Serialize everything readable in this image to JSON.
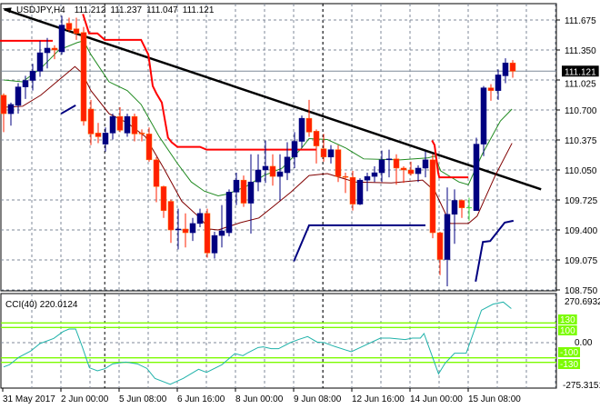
{
  "chart_data": [
    {
      "type": "candlestick",
      "title": "USDJPY,H4",
      "ohlc_header": [
        "111.212",
        "111.237",
        "111.047",
        "111.121"
      ],
      "current_price": "111.121",
      "ylim": [
        108.75,
        111.84
      ],
      "y_ticks": [
        "111.675",
        "111.350",
        "111.025",
        "110.700",
        "110.375",
        "110.050",
        "109.725",
        "109.400",
        "109.075",
        "108.750"
      ],
      "y_tick_values": [
        111.675,
        111.35,
        111.025,
        110.7,
        110.375,
        110.05,
        109.725,
        109.4,
        109.075,
        108.75
      ],
      "x_labels": [
        "31 May 2017",
        "2 Jun 00:00",
        "5 Jun 08:00",
        "6 Jun 16:00",
        "8 Jun 00:00",
        "9 Jun 08:00",
        "12 Jun 16:00",
        "14 Jun 00:00",
        "15 Jun 08:00"
      ],
      "x_label_candle_index": [
        0,
        8,
        16,
        24,
        32,
        40,
        48,
        56,
        64
      ],
      "period_separators_candle_index": [
        13.9,
        43.9
      ],
      "colors": {
        "up": "#000080",
        "down": "#ff2000",
        "neutral": "#33dd33",
        "ma_fast": "#228b22",
        "ma_slow": "#800000",
        "stop_line": "#ff0000",
        "blue_line": "#000080",
        "trendline": "#000000"
      },
      "candles": [
        [
          110.86,
          110.88,
          110.46,
          110.66
        ],
        [
          110.66,
          110.78,
          110.53,
          110.76
        ],
        [
          110.75,
          110.99,
          110.66,
          110.95
        ],
        [
          110.95,
          111.07,
          110.82,
          111.02
        ],
        [
          111.02,
          111.2,
          110.91,
          111.12
        ],
        [
          111.12,
          111.45,
          111.06,
          111.32
        ],
        [
          111.32,
          111.48,
          111.15,
          111.37
        ],
        [
          111.37,
          111.4,
          111.25,
          111.35
        ],
        [
          111.33,
          111.72,
          111.3,
          111.62
        ],
        [
          111.64,
          111.7,
          111.55,
          111.57
        ],
        [
          111.58,
          111.7,
          111.46,
          111.53
        ],
        [
          111.54,
          111.6,
          110.53,
          110.58
        ],
        [
          110.71,
          110.81,
          110.32,
          110.44
        ],
        [
          110.45,
          110.56,
          110.34,
          110.41
        ],
        [
          110.33,
          110.51,
          110.25,
          110.45
        ],
        [
          110.45,
          110.66,
          110.38,
          110.63
        ],
        [
          110.63,
          110.73,
          110.46,
          110.48
        ],
        [
          110.45,
          110.66,
          110.41,
          110.63
        ],
        [
          110.63,
          110.66,
          110.36,
          110.44
        ],
        [
          110.45,
          110.49,
          110.36,
          110.44
        ],
        [
          110.44,
          110.51,
          110.14,
          110.16
        ],
        [
          110.16,
          110.19,
          109.7,
          109.87
        ],
        [
          109.87,
          109.88,
          109.53,
          109.61
        ],
        [
          109.71,
          109.73,
          109.26,
          109.4
        ],
        [
          109.4,
          109.63,
          109.19,
          109.41
        ],
        [
          109.41,
          109.58,
          109.21,
          109.37
        ],
        [
          109.37,
          109.53,
          109.28,
          109.47
        ],
        [
          109.47,
          109.63,
          109.43,
          109.58
        ],
        [
          109.58,
          109.63,
          109.1,
          109.15
        ],
        [
          109.15,
          109.38,
          109.09,
          109.34
        ],
        [
          109.34,
          109.67,
          109.21,
          109.39
        ],
        [
          109.37,
          109.84,
          109.33,
          109.81
        ],
        [
          109.81,
          110.02,
          109.67,
          109.94
        ],
        [
          109.94,
          109.99,
          109.65,
          109.69
        ],
        [
          109.69,
          110.22,
          109.36,
          109.92
        ],
        [
          109.92,
          110.22,
          109.82,
          110.05
        ],
        [
          110.05,
          110.37,
          109.91,
          110.09
        ],
        [
          110.09,
          110.22,
          109.88,
          109.98
        ],
        [
          109.98,
          110.22,
          109.72,
          110.03
        ],
        [
          110.02,
          110.35,
          109.94,
          110.19
        ],
        [
          110.19,
          110.46,
          110.07,
          110.36
        ],
        [
          110.36,
          110.64,
          110.29,
          110.61
        ],
        [
          110.61,
          110.81,
          110.41,
          110.46
        ],
        [
          110.47,
          110.49,
          110.12,
          110.31
        ],
        [
          110.28,
          110.44,
          110.14,
          110.19
        ],
        [
          110.19,
          110.32,
          110.12,
          110.27
        ],
        [
          110.27,
          110.32,
          109.92,
          109.98
        ],
        [
          109.98,
          110.02,
          109.8,
          109.97
        ],
        [
          109.97,
          110.04,
          109.61,
          109.68
        ],
        [
          109.68,
          109.96,
          109.67,
          109.94
        ],
        [
          109.94,
          110.02,
          109.82,
          109.98
        ],
        [
          109.98,
          110.09,
          109.92,
          110.02
        ],
        [
          110.02,
          110.26,
          109.92,
          110.16
        ],
        [
          110.16,
          110.27,
          109.97,
          110.17
        ],
        [
          110.17,
          110.22,
          109.89,
          110.07
        ],
        [
          110.07,
          110.09,
          109.91,
          110.05
        ],
        [
          110.05,
          110.14,
          109.99,
          110.01
        ],
        [
          110.01,
          110.1,
          109.92,
          110.07
        ],
        [
          110.07,
          110.25,
          109.97,
          110.16
        ],
        [
          110.16,
          110.22,
          109.31,
          109.37
        ],
        [
          109.37,
          109.38,
          108.91,
          109.08
        ],
        [
          109.08,
          109.86,
          108.79,
          109.57
        ],
        [
          109.57,
          109.84,
          109.25,
          109.72
        ],
        [
          109.72,
          109.73,
          109.53,
          109.64
        ],
        [
          109.64,
          109.75,
          109.5,
          109.64
        ],
        [
          109.61,
          110.4,
          109.61,
          110.33
        ],
        [
          110.33,
          110.96,
          110.2,
          110.94
        ],
        [
          110.94,
          110.98,
          110.8,
          110.91
        ],
        [
          110.91,
          111.14,
          110.81,
          111.08
        ],
        [
          111.07,
          111.26,
          110.99,
          111.21
        ],
        [
          111.21,
          111.24,
          111.05,
          111.12
        ]
      ],
      "ma_fast": [
        [
          0,
          111.025
        ],
        [
          2.6,
          111.005
        ],
        [
          5.1,
          111.15
        ],
        [
          7.6,
          111.35
        ],
        [
          10.1,
          111.43
        ],
        [
          11,
          111.45
        ],
        [
          12,
          111.3
        ],
        [
          14.5,
          111.005
        ],
        [
          17,
          110.91
        ],
        [
          18.9,
          110.76
        ],
        [
          21.4,
          110.41
        ],
        [
          23.9,
          110.12
        ],
        [
          25.8,
          109.92
        ],
        [
          27.6,
          109.82
        ],
        [
          29.5,
          109.77
        ],
        [
          30.8,
          109.79
        ],
        [
          33.3,
          109.87
        ],
        [
          35.8,
          109.99
        ],
        [
          38.3,
          110.07
        ],
        [
          40.8,
          110.27
        ],
        [
          42,
          110.39
        ],
        [
          44.5,
          110.38
        ],
        [
          47,
          110.29
        ],
        [
          49.5,
          110.17
        ],
        [
          54.5,
          110.16
        ],
        [
          58.3,
          110.18
        ],
        [
          59.3,
          110.2
        ],
        [
          60.1,
          110.04
        ],
        [
          62.6,
          109.92
        ],
        [
          63.9,
          109.89
        ],
        [
          65.8,
          110.22
        ],
        [
          68.3,
          110.58
        ],
        [
          69.9,
          110.71
        ]
      ],
      "ma_slow": [
        [
          0,
          110.73
        ],
        [
          2.6,
          110.74
        ],
        [
          5.1,
          110.86
        ],
        [
          7.6,
          111.025
        ],
        [
          9.8,
          111.17
        ],
        [
          10.8,
          111.1
        ],
        [
          12,
          110.91
        ],
        [
          14.5,
          110.66
        ],
        [
          17,
          110.56
        ],
        [
          19.5,
          110.41
        ],
        [
          22,
          110.07
        ],
        [
          24.5,
          109.71
        ],
        [
          27,
          109.53
        ],
        [
          28.3,
          109.41
        ],
        [
          29.5,
          109.4
        ],
        [
          32.6,
          109.48
        ],
        [
          35.1,
          109.53
        ],
        [
          37,
          109.65
        ],
        [
          39.5,
          109.81
        ],
        [
          42,
          109.99
        ],
        [
          44.5,
          110.01
        ],
        [
          48.3,
          109.92
        ],
        [
          53.3,
          109.91
        ],
        [
          57.6,
          109.94
        ],
        [
          59.3,
          109.82
        ],
        [
          61.4,
          109.47
        ],
        [
          63.9,
          109.47
        ],
        [
          65.1,
          109.55
        ],
        [
          67.6,
          109.99
        ],
        [
          69.9,
          110.34
        ]
      ],
      "stop_line": [
        [
          [
            -0.5,
            111.45
          ],
          [
            6.75,
            111.45
          ]
        ],
        [
          [
            10.9,
            111.74
          ],
          [
            11.75,
            111.53
          ],
          [
            12.9,
            111.53
          ],
          [
            13.9,
            111.46
          ],
          [
            18.9,
            111.46
          ],
          [
            19.9,
            111.3
          ],
          [
            20.5,
            110.96
          ],
          [
            21,
            110.88
          ],
          [
            21.75,
            110.78
          ],
          [
            22.6,
            110.4
          ],
          [
            23.1,
            110.35
          ],
          [
            23.9,
            110.3
          ],
          [
            27,
            110.3
          ],
          [
            27.9,
            110.27
          ],
          [
            43,
            110.27
          ]
        ],
        [
          [
            58.9,
            110.37
          ],
          [
            59.25,
            110.32
          ],
          [
            59.75,
            110.02
          ],
          [
            59.9,
            109.97
          ],
          [
            63.9,
            109.97
          ]
        ]
      ],
      "blue_line": [
        [
          [
            7.9,
            110.66
          ],
          [
            9.9,
            110.75
          ]
        ],
        [
          [
            39.9,
            109.06
          ],
          [
            42,
            109.45
          ],
          [
            58,
            109.45
          ]
        ],
        [
          [
            64.9,
            108.84
          ],
          [
            65.9,
            109.27
          ],
          [
            66.9,
            109.28
          ],
          [
            68.9,
            109.48
          ],
          [
            70.1,
            109.5
          ]
        ]
      ],
      "trendline": [
        [
          0.1,
          111.79
        ],
        [
          73.9,
          109.84
        ]
      ]
    },
    {
      "type": "line",
      "title": "CCI(40) 220.0124",
      "ylim": [
        -275.3151,
        270.6932
      ],
      "y_ticks": [
        "270.6932",
        "0.00",
        "-275.3151"
      ],
      "levels": [
        130,
        100,
        -100,
        -130
      ],
      "level_labels": [
        "130",
        "100",
        "-100",
        "-130"
      ],
      "level_color": "#7cfc00",
      "line_color": "#20b2aa",
      "points": [
        [
          0,
          -160
        ],
        [
          0.8,
          -146
        ],
        [
          2.1,
          -96
        ],
        [
          3.7,
          -56
        ],
        [
          5,
          -6
        ],
        [
          6.9,
          28
        ],
        [
          8.2,
          74
        ],
        [
          9,
          90
        ],
        [
          9.9,
          90
        ],
        [
          10.8,
          -26
        ],
        [
          11.8,
          -166
        ],
        [
          12.9,
          -186
        ],
        [
          13.9,
          -172
        ],
        [
          15,
          -140
        ],
        [
          16.8,
          -128
        ],
        [
          18.4,
          -140
        ],
        [
          19.7,
          -170
        ],
        [
          20.8,
          -236
        ],
        [
          22.9,
          -275
        ],
        [
          24.7,
          -236
        ],
        [
          26.8,
          -176
        ],
        [
          27.9,
          -196
        ],
        [
          30,
          -146
        ],
        [
          31.8,
          -72
        ],
        [
          32.9,
          -86
        ],
        [
          33.6,
          -66
        ],
        [
          35,
          -32
        ],
        [
          35.7,
          -28
        ],
        [
          36.8,
          -40
        ],
        [
          37.8,
          -40
        ],
        [
          39.4,
          0
        ],
        [
          40.5,
          20
        ],
        [
          41.8,
          40
        ],
        [
          43.1,
          4
        ],
        [
          44.1,
          0
        ],
        [
          45.2,
          -20
        ],
        [
          47.8,
          -60
        ],
        [
          51.8,
          30
        ],
        [
          53.1,
          30
        ],
        [
          55.2,
          20
        ],
        [
          56.2,
          30
        ],
        [
          57.3,
          30
        ],
        [
          57.8,
          60
        ],
        [
          59.8,
          -206
        ],
        [
          60.7,
          -136
        ],
        [
          62,
          -70
        ],
        [
          63.6,
          -70
        ],
        [
          65.7,
          214
        ],
        [
          67.3,
          254
        ],
        [
          68.7,
          268
        ],
        [
          69.8,
          225
        ]
      ]
    }
  ]
}
